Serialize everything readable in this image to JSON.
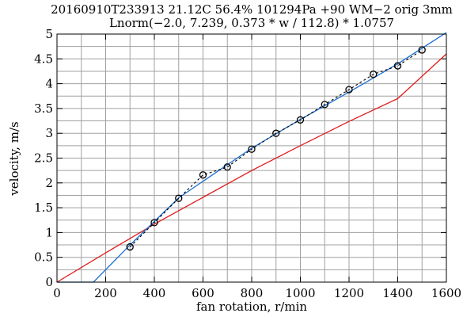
{
  "chart_data": {
    "type": "line",
    "title": "20160910T233913 21.12C 56.4% 101294Pa +90 WM−2 orig 3mm",
    "subtitle": "Lnorm(−2.0, 7.239, 0.373 * w / 112.8) * 1.0757",
    "xlabel": "fan rotation, r/min",
    "ylabel": "velocity, m/s",
    "xlim": [
      0,
      1600
    ],
    "ylim": [
      0,
      5
    ],
    "xticks": [
      0,
      200,
      400,
      600,
      800,
      1000,
      1200,
      1400,
      1600
    ],
    "xtick_labels": [
      "0",
      "200",
      "400",
      "600",
      "800",
      "1000",
      "1200",
      "1400",
      "1600"
    ],
    "yticks": [
      0,
      0.5,
      1,
      1.5,
      2,
      2.5,
      3,
      3.5,
      4,
      4.5,
      5
    ],
    "ytick_labels": [
      "0",
      "0.5",
      "1",
      "1.5",
      "2",
      "2.5",
      "3",
      "3.5",
      "4",
      "4.5",
      "5"
    ],
    "x_minor_step": 100,
    "y_minor_step": 0.25,
    "grid": true,
    "series": [
      {
        "style": "dashed-circles",
        "color": "#000000",
        "x": [
          300,
          400,
          500,
          600,
          700,
          800,
          900,
          1000,
          1100,
          1200,
          1300,
          1400,
          1500
        ],
        "y": [
          0.71,
          1.2,
          1.69,
          2.16,
          2.32,
          2.68,
          3.0,
          3.27,
          3.58,
          3.88,
          4.19,
          4.36,
          4.68
        ]
      },
      {
        "style": "solid",
        "color": "#1a6fd0",
        "x": [
          0,
          150,
          300,
          500,
          800,
          1000,
          1200,
          1400,
          1600
        ],
        "y": [
          0,
          0,
          0.75,
          1.7,
          2.7,
          3.28,
          3.83,
          4.4,
          5.03
        ]
      },
      {
        "style": "solid",
        "color": "#e01b1b",
        "x": [
          0,
          200,
          400,
          600,
          800,
          1000,
          1200,
          1400,
          1600
        ],
        "y": [
          0,
          0.59,
          1.17,
          1.71,
          2.25,
          2.75,
          3.24,
          3.7,
          4.6
        ]
      }
    ]
  }
}
